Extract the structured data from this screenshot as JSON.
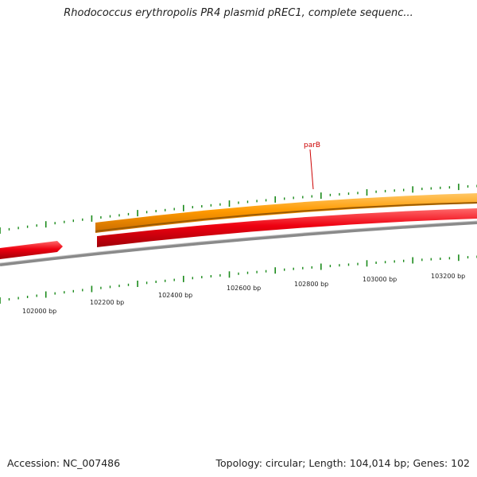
{
  "title": "Rhodococcus erythropolis PR4 plasmid pREC1, complete sequenc...",
  "footer": {
    "accession": "Accession: NC_007486",
    "summary": "Topology: circular; Length: 104,014 bp; Genes: 102"
  },
  "colors": {
    "forward_gene": "#ff9a00",
    "reverse_gene": "#e8000a",
    "backbone": "#8a8a8a",
    "ticks": "#1a8a1a",
    "label": "#cc0000"
  },
  "scale_labels": [
    "102000 bp",
    "102200 bp",
    "102400 bp",
    "102600 bp",
    "102800 bp",
    "103000 bp",
    "103200 bp"
  ],
  "gene_labels": [
    {
      "name": "parB",
      "strand": "forward"
    }
  ]
}
